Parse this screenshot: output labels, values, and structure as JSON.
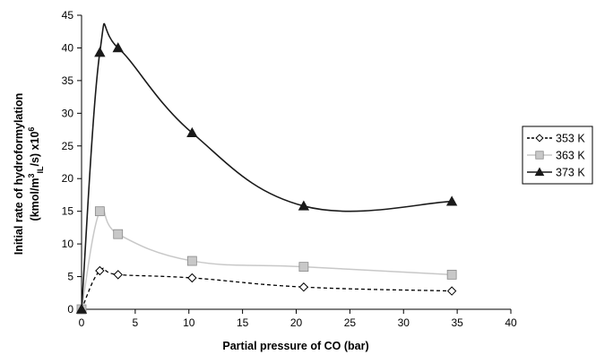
{
  "chart_data": {
    "type": "line",
    "xlabel": "Partial pressure of CO (bar)",
    "ylabel_line1": "Initial rate of hydroformylation",
    "ylabel_line2_parts": [
      "(kmol/m",
      "3",
      "IL",
      "/s) x10",
      "6"
    ],
    "xlim": [
      0,
      40
    ],
    "ylim": [
      0,
      45
    ],
    "x_ticks": [
      "0",
      "5",
      "10",
      "15",
      "20",
      "25",
      "30",
      "35",
      "40"
    ],
    "y_ticks": [
      "0",
      "5",
      "10",
      "15",
      "20",
      "25",
      "30",
      "35",
      "40",
      "45"
    ],
    "grid": false,
    "legend_position": "right",
    "series": [
      {
        "name": "353 K",
        "marker": "diamond-open",
        "line_style": "dashed",
        "color": "#000000",
        "marker_fill": "#ffffff",
        "x": [
          0,
          1.7,
          3.4,
          10.3,
          20.7,
          34.5
        ],
        "y": [
          0,
          5.9,
          5.3,
          4.8,
          3.4,
          2.8
        ]
      },
      {
        "name": "363 K",
        "marker": "square",
        "line_style": "solid",
        "color": "#c8c8c8",
        "marker_fill": "#c8c8c8",
        "x": [
          0,
          1.7,
          3.4,
          10.3,
          20.7,
          34.5
        ],
        "y": [
          0,
          15.0,
          11.5,
          7.4,
          6.5,
          5.3
        ]
      },
      {
        "name": "373 K",
        "marker": "triangle",
        "line_style": "solid",
        "color": "#1a1a1a",
        "marker_fill": "#1a1a1a",
        "x": [
          0,
          1.7,
          3.4,
          10.3,
          20.7,
          34.5
        ],
        "y": [
          0,
          39.3,
          40.0,
          27.0,
          15.8,
          16.5
        ]
      }
    ]
  }
}
